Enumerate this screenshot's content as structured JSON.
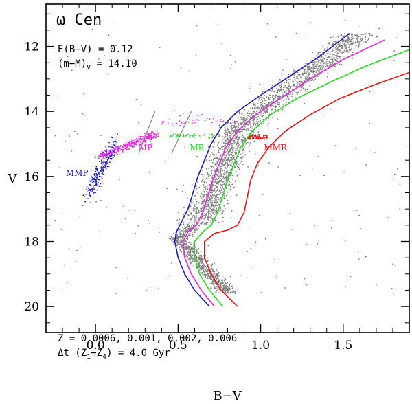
{
  "chart_data": {
    "type": "scatter",
    "title": "ω Cen",
    "xlabel": "B−V",
    "ylabel": "V",
    "xlim": [
      -0.3,
      1.9
    ],
    "ylim": [
      20.8,
      10.7
    ],
    "y_inverted": true,
    "x_ticks": [
      0.0,
      0.5,
      1.0,
      1.5
    ],
    "x_tick_labels": [
      "0.0",
      "0.5",
      "1.0",
      "1.5"
    ],
    "y_ticks": [
      12,
      14,
      16,
      18,
      20
    ],
    "y_tick_labels": [
      "12",
      "14",
      "16",
      "18",
      "20"
    ],
    "annotations": {
      "reddening": "E(B−V) = 0.12",
      "distance_prefix": "(m−M)",
      "distance_sub": "V",
      "distance_suffix": " = 14.10",
      "z_line": "Z = 0.0006, 0.001, 0.002, 0.006",
      "dt_prefix": "Δt (Z",
      "dt_sub1": "1",
      "dt_mid": "−Z",
      "dt_sub2": "4",
      "dt_suffix": ") = 4.0 Gyr"
    },
    "population_labels": [
      {
        "text": "MMP",
        "color": "#1a1acc",
        "x": -0.18,
        "y": 15.98
      },
      {
        "text": "MP",
        "color": "#ee22ee",
        "x": 0.26,
        "y": 15.2
      },
      {
        "text": "MR",
        "color": "#22dd22",
        "x": 0.57,
        "y": 15.2
      },
      {
        "text": "MMR",
        "color": "#ee1111",
        "x": 1.02,
        "y": 15.2
      }
    ],
    "isochrones": [
      {
        "color": "#1a1acc",
        "z": "0.0006",
        "x": [
          0.69,
          0.6,
          0.54,
          0.5,
          0.48,
          0.49,
          0.52,
          0.56,
          0.59,
          0.62,
          0.66,
          0.7,
          0.76,
          0.86,
          1.0,
          1.15,
          1.33,
          1.54
        ],
        "y": [
          20.0,
          19.5,
          19.0,
          18.5,
          18.0,
          17.7,
          17.4,
          17.0,
          16.5,
          16.0,
          15.5,
          15.0,
          14.5,
          14.0,
          13.5,
          13.0,
          12.4,
          11.6
        ]
      },
      {
        "color": "#ee22ee",
        "z": "0.001",
        "x": [
          0.72,
          0.64,
          0.58,
          0.54,
          0.53,
          0.56,
          0.61,
          0.65,
          0.68,
          0.71,
          0.75,
          0.79,
          0.86,
          0.97,
          1.12,
          1.3,
          1.5,
          1.75
        ],
        "y": [
          20.0,
          19.5,
          19.0,
          18.5,
          18.0,
          17.7,
          17.5,
          17.1,
          16.6,
          16.1,
          15.6,
          15.1,
          14.6,
          14.1,
          13.6,
          13.0,
          12.4,
          11.8
        ]
      },
      {
        "color": "#22dd22",
        "z": "0.002",
        "x": [
          0.77,
          0.69,
          0.63,
          0.6,
          0.6,
          0.65,
          0.7,
          0.74,
          0.77,
          0.8,
          0.84,
          0.88,
          0.95,
          1.06,
          1.22,
          1.42,
          1.64,
          1.9
        ],
        "y": [
          20.0,
          19.5,
          19.0,
          18.5,
          18.0,
          17.7,
          17.5,
          17.1,
          16.6,
          16.1,
          15.6,
          15.1,
          14.6,
          14.1,
          13.6,
          13.1,
          12.6,
          12.1
        ]
      },
      {
        "color": "#ee1111",
        "z": "0.006",
        "x": [
          0.86,
          0.76,
          0.7,
          0.66,
          0.66,
          0.72,
          0.8,
          0.86,
          0.9,
          0.92,
          0.94,
          0.98,
          1.05,
          1.15,
          1.3,
          1.48,
          1.68,
          1.9
        ],
        "y": [
          20.0,
          19.5,
          19.0,
          18.5,
          18.0,
          17.75,
          17.65,
          17.5,
          17.1,
          16.6,
          16.1,
          15.6,
          15.1,
          14.6,
          14.1,
          13.6,
          13.2,
          12.8
        ]
      }
    ],
    "dividers": [
      {
        "color": "#808080",
        "x": [
          0.26,
          0.36
        ],
        "y": [
          15.3,
          14.0
        ]
      },
      {
        "color": "#808080",
        "x": [
          0.46,
          0.58
        ],
        "y": [
          15.3,
          14.0
        ]
      }
    ],
    "star_groups": [
      {
        "name": "field",
        "color": "#7f7f7f",
        "kind": "cloud"
      },
      {
        "name": "MMP",
        "color": "#1a1acc",
        "kind": "hb-blue"
      },
      {
        "name": "MP",
        "color": "#ee22ee",
        "kind": "hb-pink"
      },
      {
        "name": "MR",
        "color": "#22dd22",
        "kind": "hb-green"
      },
      {
        "name": "MMR",
        "color": "#ee1111",
        "kind": "hb-red"
      }
    ]
  }
}
